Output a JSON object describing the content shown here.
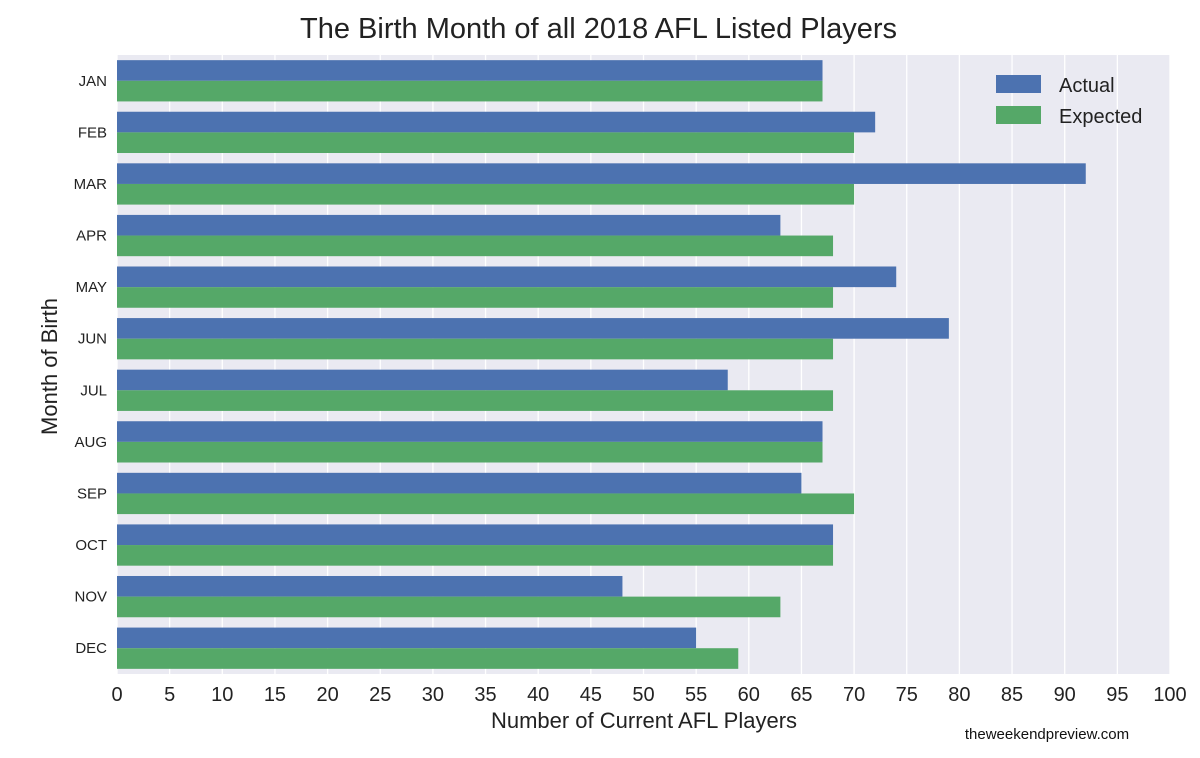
{
  "chart_data": {
    "type": "bar",
    "orientation": "horizontal",
    "title": "The Birth Month of all 2018 AFL Listed Players",
    "xlabel": "Number of Current AFL Players",
    "ylabel": "Month of Birth",
    "xlim": [
      0,
      100
    ],
    "xticks": [
      0,
      5,
      10,
      15,
      20,
      25,
      30,
      35,
      40,
      45,
      50,
      55,
      60,
      65,
      70,
      75,
      80,
      85,
      90,
      95,
      100
    ],
    "grid": true,
    "legend_position": "top-right",
    "categories": [
      "JAN",
      "FEB",
      "MAR",
      "APR",
      "MAY",
      "JUN",
      "JUL",
      "AUG",
      "SEP",
      "OCT",
      "NOV",
      "DEC"
    ],
    "series": [
      {
        "name": "Actual",
        "color": "#4c72b0",
        "values": [
          67,
          72,
          92,
          63,
          74,
          79,
          58,
          67,
          65,
          68,
          48,
          55
        ]
      },
      {
        "name": "Expected",
        "color": "#55a868",
        "values": [
          67,
          70,
          70,
          68,
          68,
          68,
          68,
          67,
          70,
          68,
          63,
          59
        ]
      }
    ]
  },
  "watermark": "theweekendpreview.com",
  "colors": {
    "plot_background": "#eaeaf2",
    "grid": "#ffffff"
  }
}
